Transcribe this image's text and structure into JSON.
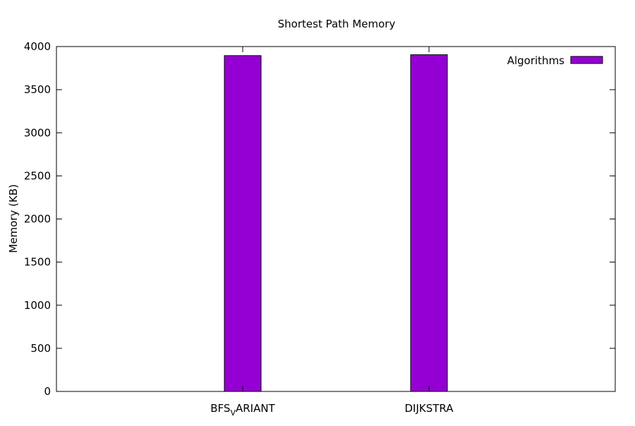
{
  "chart_data": {
    "type": "bar",
    "title": "Shortest Path Memory",
    "ylabel": "Memory (KB)",
    "xlabel": "",
    "categories": [
      {
        "base": "BFS",
        "sub": "V",
        "rest": "ARIANT"
      },
      {
        "base": "DIJKSTRA",
        "sub": "",
        "rest": ""
      }
    ],
    "series": [
      {
        "name": "Algorithms",
        "values": [
          3895,
          3905
        ],
        "color": "#9400d3"
      }
    ],
    "ylim": [
      0,
      4000
    ],
    "yticks": [
      0,
      500,
      1000,
      1500,
      2000,
      2500,
      3000,
      3500,
      4000
    ],
    "grid": false,
    "legend_position": "top-right"
  }
}
